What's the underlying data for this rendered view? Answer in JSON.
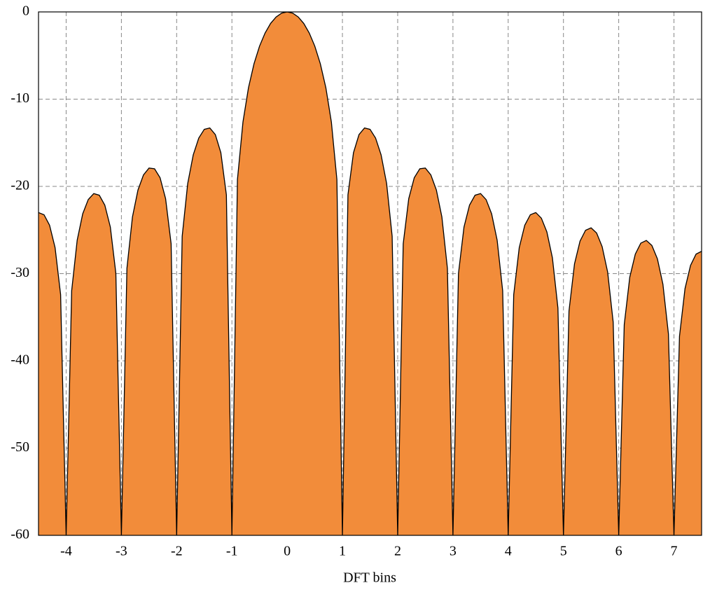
{
  "chart_data": {
    "type": "area",
    "x_label": "DFT bins",
    "color": "#f28c3a",
    "line_color": "#000000",
    "grid": true,
    "xlim": [
      -4.5,
      7.5
    ],
    "ylim": [
      -60,
      0
    ],
    "xticks": [
      -4,
      -3,
      -2,
      -1,
      0,
      1,
      2,
      3,
      4,
      5,
      6,
      7
    ],
    "yticks": [
      -60,
      -50,
      -40,
      -30,
      -20,
      -10,
      0
    ],
    "x": [
      -4.5,
      -4.4,
      -4.3,
      -4.2,
      -4.1,
      -4.0,
      -3.9,
      -3.8,
      -3.7,
      -3.6,
      -3.5,
      -3.4,
      -3.3,
      -3.2,
      -3.1,
      -3.0,
      -2.9,
      -2.8,
      -2.7,
      -2.6,
      -2.5,
      -2.4,
      -2.3,
      -2.2,
      -2.1,
      -2.0,
      -1.9,
      -1.8,
      -1.7,
      -1.6,
      -1.5,
      -1.4,
      -1.3,
      -1.2,
      -1.1,
      -1.0,
      -0.9,
      -0.8,
      -0.7,
      -0.6,
      -0.5,
      -0.4,
      -0.3,
      -0.2,
      -0.1,
      0,
      0.1,
      0.2,
      0.3,
      0.4,
      0.5,
      0.6,
      0.7,
      0.8,
      0.9,
      1.0,
      1.1,
      1.2,
      1.3,
      1.4,
      1.5,
      1.6,
      1.7,
      1.8,
      1.9,
      2.0,
      2.1,
      2.2,
      2.3,
      2.4,
      2.5,
      2.6,
      2.7,
      2.8,
      2.9,
      3.0,
      3.1,
      3.2,
      3.3,
      3.4,
      3.5,
      3.6,
      3.7,
      3.8,
      3.9,
      4.0,
      4.1,
      4.2,
      4.3,
      4.4,
      4.5,
      4.6,
      4.7,
      4.8,
      4.9,
      5.0,
      5.1,
      5.2,
      5.3,
      5.4,
      5.5,
      5.6,
      5.7,
      5.8,
      5.9,
      6.0,
      6.1,
      6.2,
      6.3,
      6.4,
      6.5,
      6.6,
      6.7,
      6.8,
      6.9,
      7.0,
      7.1,
      7.2,
      7.3,
      7.4,
      7.5
    ],
    "values": [
      -23.0,
      -23.25,
      -24.45,
      -27.02,
      -32.4,
      -60,
      -31.96,
      -26.16,
      -23.14,
      -21.51,
      -20.82,
      -21.01,
      -22.15,
      -24.66,
      -29.97,
      -60,
      -29.39,
      -23.5,
      -20.41,
      -18.68,
      -17.9,
      -17.98,
      -19.01,
      -21.41,
      -26.58,
      -60,
      -25.72,
      -19.67,
      -16.39,
      -14.46,
      -13.46,
      -13.3,
      -14.06,
      -16.14,
      -20.97,
      -60,
      -19.22,
      -12.62,
      -8.68,
      -5.94,
      -3.92,
      -2.42,
      -1.32,
      -0.58,
      -0.14,
      0,
      -0.14,
      -0.58,
      -1.32,
      -2.42,
      -3.92,
      -5.94,
      -8.68,
      -12.62,
      -19.22,
      -60,
      -20.97,
      -16.14,
      -14.06,
      -13.3,
      -13.46,
      -14.46,
      -16.39,
      -19.67,
      -25.72,
      -60,
      -26.58,
      -21.41,
      -19.01,
      -17.98,
      -17.9,
      -18.68,
      -20.41,
      -23.5,
      -29.39,
      -60,
      -29.97,
      -24.66,
      -22.15,
      -21.01,
      -20.82,
      -21.51,
      -23.14,
      -26.16,
      -31.96,
      -60,
      -32.4,
      -27.02,
      -24.45,
      -23.25,
      -23.0,
      -23.64,
      -25.22,
      -28.18,
      -33.94,
      -60,
      -34.29,
      -28.88,
      -26.27,
      -25.03,
      -24.75,
      -25.34,
      -26.9,
      -29.83,
      -35.56,
      -60,
      -35.85,
      -30.41,
      -27.77,
      -26.5,
      -26.2,
      -26.77,
      -28.3,
      -31.21,
      -36.92,
      -60,
      -37.17,
      -31.71,
      -29.05,
      -27.76,
      -27.44
    ]
  }
}
